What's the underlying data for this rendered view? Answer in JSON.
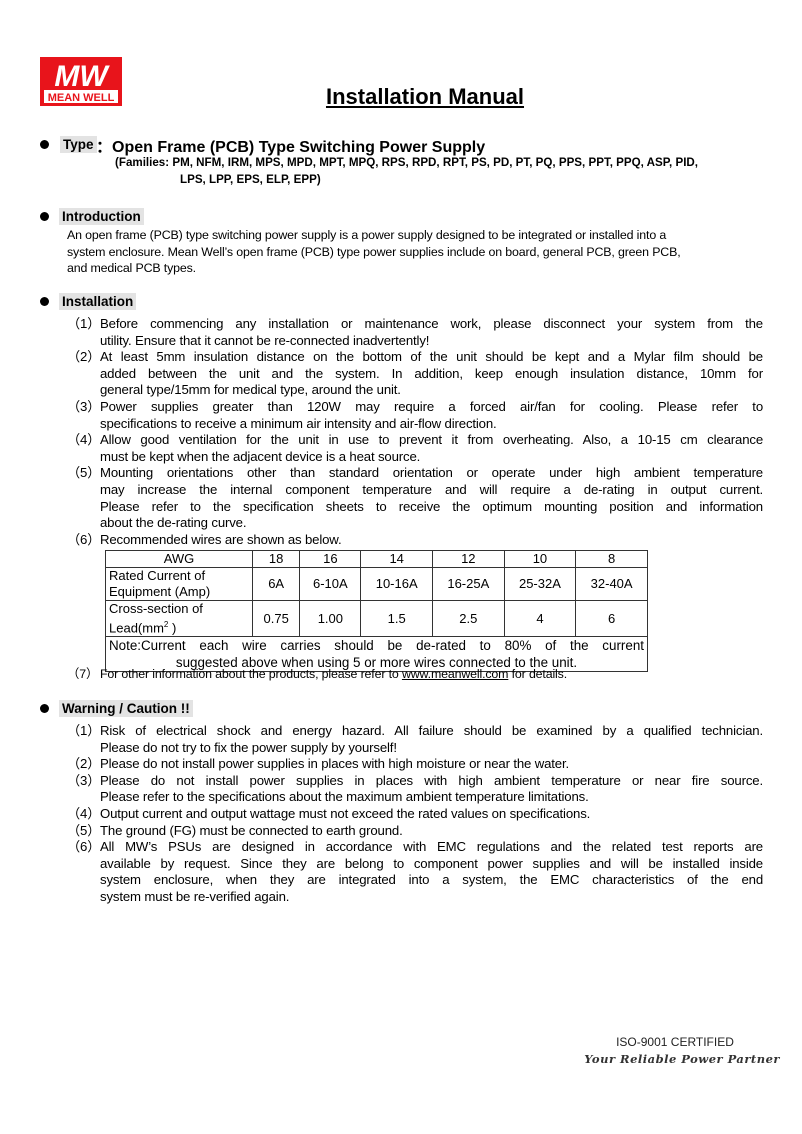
{
  "logo": {
    "mark": "MW",
    "brand": "MEAN WELL",
    "color": "#e8141b"
  },
  "title": "Installation Manual",
  "type": {
    "label": "Type",
    "separator": "：",
    "value": "Open Frame (PCB) Type Switching Power Supply",
    "families": [
      "(Families: PM, NFM, IRM, MPS, MPD, MPT, MPQ, RPS, RPD, RPT, PS, PD, PT, PQ, PPS, PPT, PPQ, ASP, PID,",
      "LPS, LPP, EPS, ELP, EPP)"
    ]
  },
  "introduction": {
    "label": "Introduction",
    "lines": [
      "An open frame (PCB) type switching power supply is a power supply designed to be integrated or installed into a",
      "system enclosure. Mean Well’s open frame (PCB) type power supplies include on board, general PCB, green PCB,",
      "and medical PCB types."
    ]
  },
  "installation": {
    "label": "Installation",
    "items": [
      {
        "num": "（1）",
        "lines": [
          "Before commencing any installation or maintenance work, please disconnect your system from the",
          "utility. Ensure that it cannot be re-connected inadvertently!"
        ]
      },
      {
        "num": "（2）",
        "lines": [
          "At least 5mm insulation distance on the bottom of the unit should be kept and a Mylar film should be",
          "added between the unit and the system. In addition, keep enough insulation distance, 10mm for",
          "general type/15mm for medical type, around the unit."
        ]
      },
      {
        "num": "（3）",
        "lines": [
          "Power supplies greater than 120W may require a forced air/fan for cooling. Please refer to",
          "specifications to receive a minimum air intensity and air-flow direction."
        ]
      },
      {
        "num": "（4）",
        "lines": [
          "Allow good ventilation for the unit in use to prevent it from overheating. Also, a 10-15 cm clearance",
          "must be kept when the adjacent device is a heat source."
        ]
      },
      {
        "num": "（5）",
        "lines": [
          "Mounting orientations other than standard orientation or operate under high ambient temperature",
          "may increase the internal component temperature and will require a de-rating in output current.",
          "Please refer to the specification sheets to receive the optimum mounting position and information",
          "about the de-rating curve."
        ]
      },
      {
        "num": "（6）",
        "lines": [
          "Recommended wires are shown as below."
        ]
      }
    ],
    "table": {
      "header": [
        "AWG",
        "18",
        "16",
        "14",
        "12",
        "10",
        "8"
      ],
      "rows": [
        {
          "label": [
            "Rated Current of",
            "Equipment (Amp)"
          ],
          "cells": [
            "6A",
            "6-10A",
            "10-16A",
            "16-25A",
            "25-32A",
            "32-40A"
          ]
        },
        {
          "label": [
            "Cross-section of",
            "Lead(mm",
            "2",
            " )"
          ],
          "cells": [
            "0.75",
            "1.00",
            "1.5",
            "2.5",
            "4",
            "6"
          ]
        }
      ],
      "note": [
        "Note:Current each wire carries should be de-rated to 80% of the current",
        "suggested above when using 5 or more wires connected to the unit."
      ]
    },
    "item7": {
      "num": "（7）",
      "before": "For other information about the products, please refer to ",
      "link": "www.meanwell.com",
      "after": " for details."
    }
  },
  "warning": {
    "label": "Warning / Caution !!",
    "items": [
      {
        "num": "（1）",
        "lines": [
          "Risk of electrical shock and energy hazard. All failure should be examined by a qualified technician.",
          "Please do not try to fix the power supply by yourself!"
        ]
      },
      {
        "num": "（2）",
        "lines": [
          "Please do not install power supplies in places with high moisture or near the water."
        ]
      },
      {
        "num": "（3）",
        "lines": [
          "Please do not install power supplies in places with high ambient temperature or near fire source.",
          "Please refer to the specifications about the maximum ambient temperature limitations."
        ]
      },
      {
        "num": "（4）",
        "lines": [
          "Output current and output wattage must not exceed the rated values on specifications."
        ]
      },
      {
        "num": "（5）",
        "lines": [
          "The ground (FG) must be connected to earth ground."
        ]
      },
      {
        "num": "（6）",
        "lines": [
          "All MW’s PSUs are designed in accordance with EMC regulations and the related test reports are",
          "available by request. Since they are belong to component power supplies and will be installed inside",
          "system enclosure, when they are integrated into a system, the EMC characteristics of the end",
          "system must be re-verified again."
        ]
      }
    ]
  },
  "footer": {
    "cert": "ISO-9001 CERTIFIED",
    "slogan": "Your Reliable Power Partner"
  }
}
